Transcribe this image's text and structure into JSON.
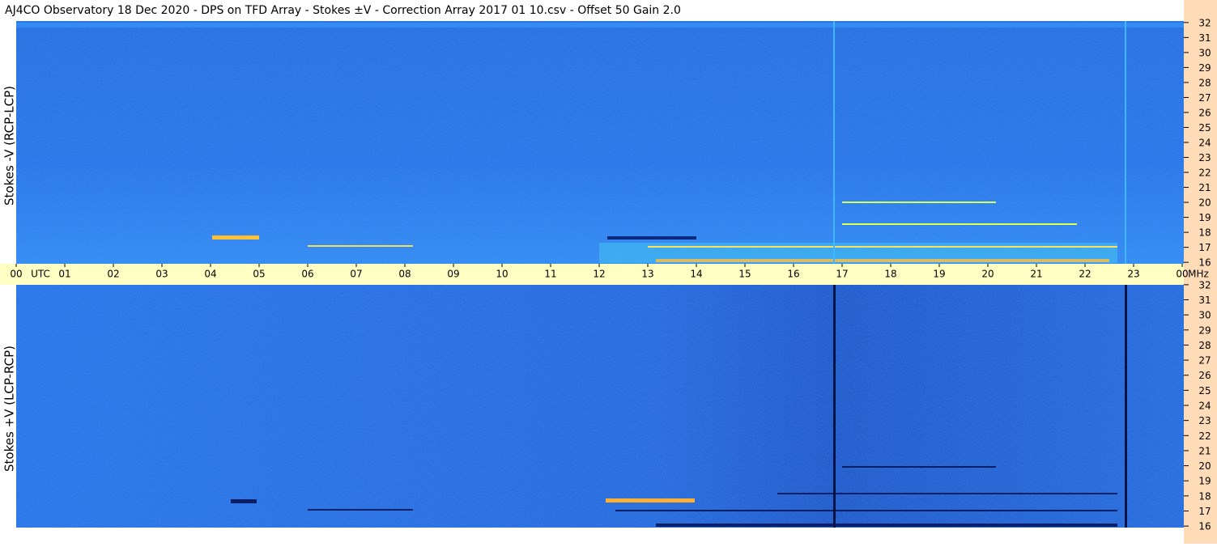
{
  "chart_data": [
    {
      "type": "spectrogram",
      "title": "AJ4CO Observatory  18 Dec 2020  -  DPS on TFD Array  -  Stokes ±V  -  Correction Array 2017 01 10.csv  -  Offset 50  Gain 2.0",
      "ylabel": "Stokes -V (RCP-LCP)",
      "xlim": [
        0,
        24
      ],
      "xticks": [
        {
          "value": 0,
          "label": "00"
        },
        {
          "value": 1,
          "label": "01"
        },
        {
          "value": 2,
          "label": "02"
        },
        {
          "value": 3,
          "label": "03"
        },
        {
          "value": 4,
          "label": "04"
        },
        {
          "value": 5,
          "label": "05"
        },
        {
          "value": 6,
          "label": "06"
        },
        {
          "value": 7,
          "label": "07"
        },
        {
          "value": 8,
          "label": "08"
        },
        {
          "value": 9,
          "label": "09"
        },
        10,
        11,
        12,
        13,
        14,
        15,
        16,
        17,
        18,
        19,
        20,
        21,
        22,
        23,
        {
          "value": 24,
          "label": "00"
        }
      ],
      "xunit": "UTC",
      "yunit": "MHz",
      "ylim": [
        15.9,
        32.1
      ],
      "yticks": [
        16,
        17,
        18,
        19,
        20,
        21,
        22,
        23,
        24,
        25,
        26,
        27,
        28,
        29,
        30,
        31,
        32
      ]
    },
    {
      "type": "spectrogram",
      "ylabel": "Stokes +V (LCP-RCP)",
      "ylim": [
        15.9,
        32.1
      ],
      "yticks": [
        16,
        17,
        18,
        19,
        20,
        21,
        22,
        23,
        24,
        25,
        26,
        27,
        28,
        29,
        30,
        31,
        32
      ]
    }
  ]
}
